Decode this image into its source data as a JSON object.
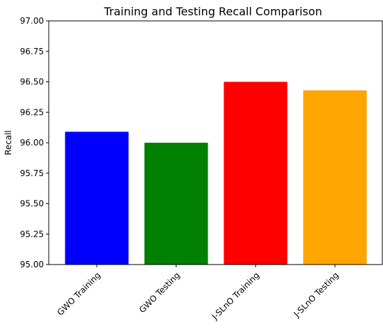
{
  "chart_data": {
    "type": "bar",
    "title": "Training and Testing Recall Comparison",
    "xlabel": "",
    "ylabel": "Recall",
    "categories": [
      "GWO Training",
      "GWO Testing",
      "J-SLnO Training",
      "J-SLnO Testing"
    ],
    "values": [
      96.09,
      96.0,
      96.5,
      96.43
    ],
    "colors": [
      "#0000ff",
      "#008000",
      "#ff0000",
      "#ffa500"
    ],
    "ylim": [
      95.0,
      97.0
    ],
    "yticks": [
      "95.00",
      "95.25",
      "95.50",
      "95.75",
      "96.00",
      "96.25",
      "96.50",
      "96.75",
      "97.00"
    ],
    "grid": false,
    "legend": false
  }
}
